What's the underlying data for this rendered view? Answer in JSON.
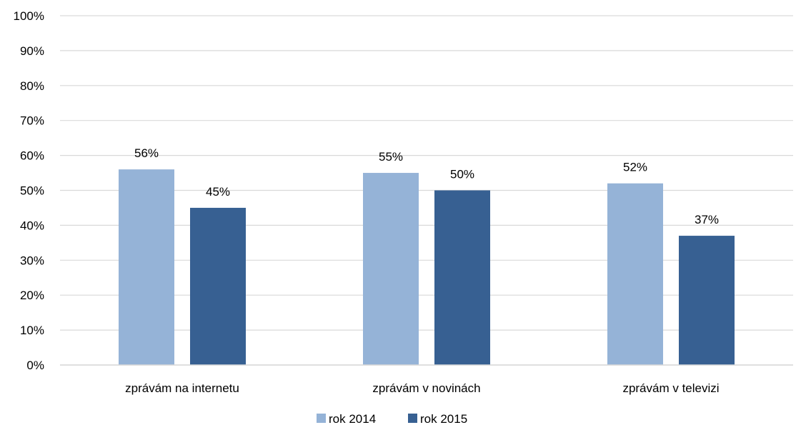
{
  "chart_data": {
    "type": "bar",
    "title": "",
    "xlabel": "",
    "ylabel": "",
    "categories": [
      "zprávám na internetu",
      "zprávám v novinách",
      "zprávám v televizi"
    ],
    "series": [
      {
        "name": "rok 2014",
        "values": [
          56,
          55,
          52
        ],
        "labels": [
          "56%",
          "55%",
          "52%"
        ],
        "color": "#95b3d7"
      },
      {
        "name": "rok 2015",
        "values": [
          45,
          50,
          37
        ],
        "labels": [
          "45%",
          "50%",
          "37%"
        ],
        "color": "#376092"
      }
    ],
    "ylim": [
      0,
      100
    ],
    "yticks": [
      "0%",
      "10%",
      "20%",
      "30%",
      "40%",
      "50%",
      "60%",
      "70%",
      "80%",
      "90%",
      "100%"
    ],
    "grid": true,
    "legend_position": "bottom-center",
    "gridline_color": "#d9d9d9"
  }
}
